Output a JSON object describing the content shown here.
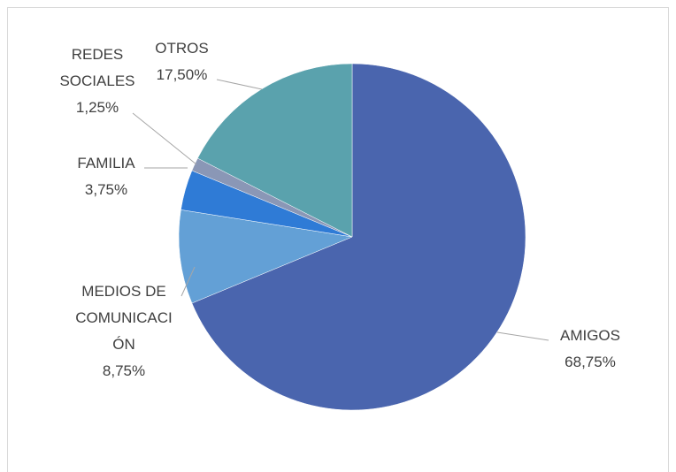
{
  "chart_data": {
    "type": "pie",
    "categories": [
      "AMIGOS",
      "MEDIOS DE COMUNICACIÓN",
      "FAMILIA",
      "REDES SOCIALES",
      "OTROS"
    ],
    "values": [
      68.75,
      8.75,
      3.75,
      1.25,
      17.5
    ],
    "value_labels": [
      "68,75%",
      "8,75%",
      "3,75%",
      "1,25%",
      "17,50%"
    ],
    "colors": [
      "#4a65ae",
      "#63a0d6",
      "#2f7bd6",
      "#8a97b6",
      "#5aa2ad"
    ]
  }
}
